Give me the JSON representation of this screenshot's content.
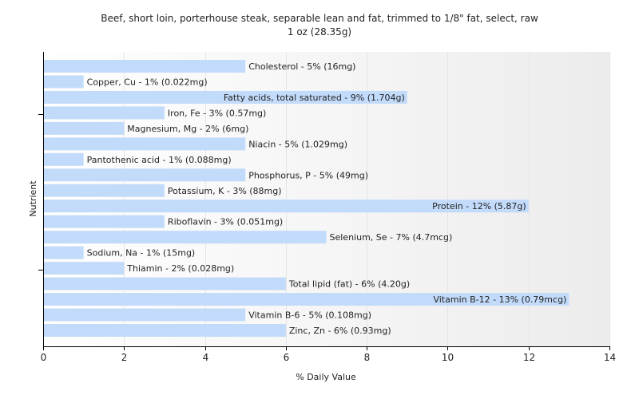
{
  "chart_data": {
    "type": "bar",
    "orientation": "horizontal",
    "title": "Beef, short loin, porterhouse steak, separable lean and fat, trimmed to 1/8\" fat, select, raw",
    "subtitle": "1 oz (28.35g)",
    "xlabel": "% Daily Value",
    "ylabel": "Nutrient",
    "xlim": [
      0,
      14
    ],
    "xticks": [
      "0",
      "2",
      "4",
      "6",
      "8",
      "10",
      "12",
      "14"
    ],
    "grid": true,
    "bar_color": "#c3dbfa",
    "categories": [
      "Cholesterol",
      "Copper, Cu",
      "Fatty acids, total saturated",
      "Iron, Fe",
      "Magnesium, Mg",
      "Niacin",
      "Pantothenic acid",
      "Phosphorus, P",
      "Potassium, K",
      "Protein",
      "Riboflavin",
      "Selenium, Se",
      "Sodium, Na",
      "Thiamin",
      "Total lipid (fat)",
      "Vitamin B-12",
      "Vitamin B-6",
      "Zinc, Zn"
    ],
    "values": [
      5,
      1,
      9,
      3,
      2,
      5,
      1,
      5,
      3,
      12,
      3,
      7,
      1,
      2,
      6,
      13,
      5,
      6
    ],
    "labels": [
      "Cholesterol - 5% (16mg)",
      "Copper, Cu - 1% (0.022mg)",
      "Fatty acids, total saturated - 9% (1.704g)",
      "Iron, Fe - 3% (0.57mg)",
      "Magnesium, Mg - 2% (6mg)",
      "Niacin - 5% (1.029mg)",
      "Pantothenic acid - 1% (0.088mg)",
      "Phosphorus, P - 5% (49mg)",
      "Potassium, K - 3% (88mg)",
      "Protein - 12% (5.87g)",
      "Riboflavin - 3% (0.051mg)",
      "Selenium, Se - 7% (4.7mcg)",
      "Sodium, Na - 1% (15mg)",
      "Thiamin - 2% (0.028mg)",
      "Total lipid (fat) - 6% (4.20g)",
      "Vitamin B-12 - 13% (0.79mcg)",
      "Vitamin B-6 - 5% (0.108mg)",
      "Zinc, Zn - 6% (0.93mg)"
    ]
  }
}
